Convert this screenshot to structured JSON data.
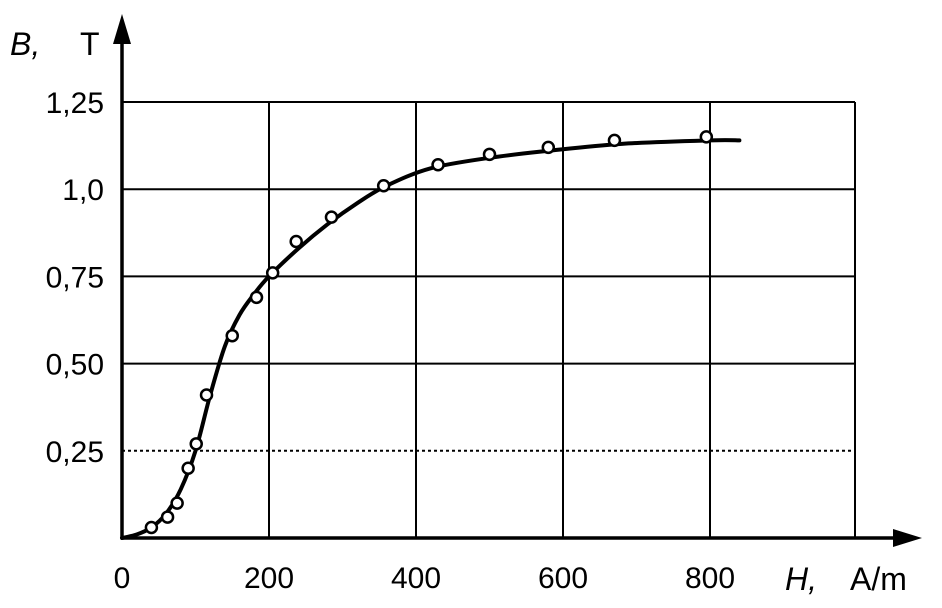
{
  "chart_data": {
    "type": "line",
    "title": "",
    "xlabel": {
      "symbol": "H,",
      "unit": "A/m"
    },
    "ylabel": {
      "symbol": "B,",
      "unit": "T"
    },
    "xlim": [
      0,
      800
    ],
    "ylim": [
      0,
      1.25
    ],
    "x_ticks": [
      {
        "value": 0,
        "label": "0"
      },
      {
        "value": 200,
        "label": "200"
      },
      {
        "value": 400,
        "label": "400"
      },
      {
        "value": 600,
        "label": "600"
      },
      {
        "value": 800,
        "label": "800"
      }
    ],
    "y_ticks": [
      {
        "value": 0.25,
        "label": "0,25"
      },
      {
        "value": 0.5,
        "label": "0,50"
      },
      {
        "value": 0.75,
        "label": "0,75"
      },
      {
        "value": 1.0,
        "label": "1,0"
      },
      {
        "value": 1.25,
        "label": "1,25"
      }
    ],
    "grid": true,
    "curve": {
      "x": [
        0,
        20,
        40,
        60,
        80,
        100,
        120,
        140,
        160,
        180,
        200,
        240,
        280,
        320,
        360,
        420,
        500,
        580,
        680,
        800,
        840
      ],
      "y": [
        0,
        0.01,
        0.03,
        0.07,
        0.14,
        0.25,
        0.41,
        0.55,
        0.64,
        0.7,
        0.75,
        0.83,
        0.9,
        0.96,
        1.01,
        1.06,
        1.09,
        1.11,
        1.13,
        1.14,
        1.14
      ]
    },
    "points": {
      "x": [
        40,
        62,
        75,
        90,
        101,
        115,
        150,
        183,
        205,
        237,
        285,
        356,
        430,
        500,
        580,
        670,
        795
      ],
      "y": [
        0.03,
        0.06,
        0.1,
        0.2,
        0.27,
        0.41,
        0.58,
        0.69,
        0.76,
        0.85,
        0.92,
        1.01,
        1.07,
        1.1,
        1.12,
        1.14,
        1.15
      ]
    }
  }
}
